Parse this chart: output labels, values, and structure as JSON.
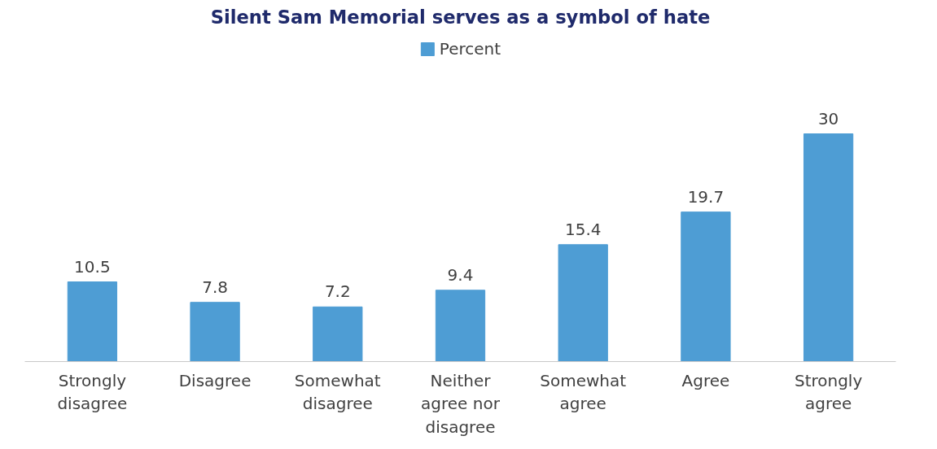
{
  "chart_data": {
    "type": "bar",
    "title": "Silent Sam Memorial serves as a symbol of hate",
    "categories": [
      "Strongly disagree",
      "Disagree",
      "Somewhat disagree",
      "Neither agree nor disagree",
      "Somewhat agree",
      "Agree",
      "Strongly agree"
    ],
    "series": [
      {
        "name": "Percent",
        "color": "#4e9dd4",
        "values": [
          10.5,
          7.8,
          7.2,
          9.4,
          15.4,
          19.7,
          30
        ]
      }
    ],
    "data_labels": true,
    "legend": "top",
    "grid": false
  }
}
